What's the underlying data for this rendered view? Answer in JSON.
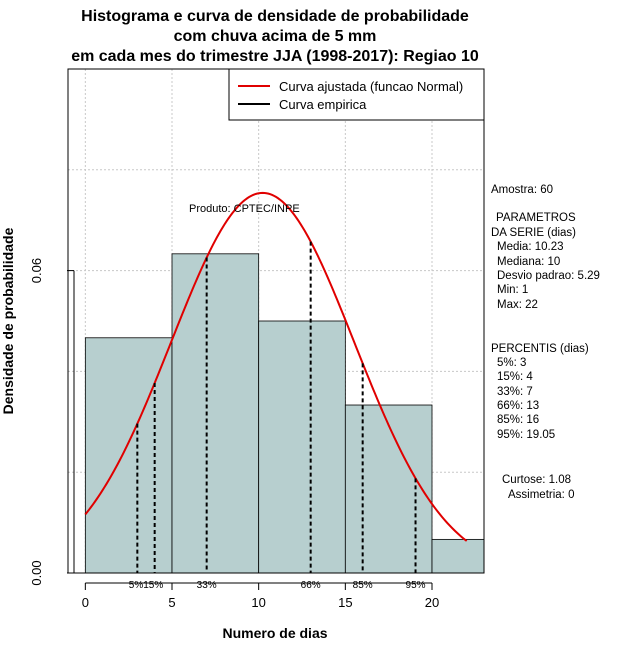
{
  "chart_data": {
    "type": "bar",
    "title": [
      "Histograma e curva de densidade de probabilidade",
      "com chuva acima de 5 mm",
      "em cada mes do trimestre JJA (1998-2017): Regiao 10"
    ],
    "xlabel": "Numero de dias",
    "ylabel": "Densidade de probabilidade",
    "xlim": [
      -1,
      23
    ],
    "ylim": [
      0,
      0.1
    ],
    "x_ticks": [
      0,
      5,
      10,
      15,
      20
    ],
    "y_ticks": [
      0.0,
      0.06
    ],
    "y_tick_labels": [
      "0.00",
      "0.06"
    ],
    "grid": true,
    "bins": [
      {
        "x0": 0,
        "x1": 5,
        "density": 0.04667
      },
      {
        "x0": 5,
        "x1": 10,
        "density": 0.06333
      },
      {
        "x0": 10,
        "x1": 15,
        "density": 0.05
      },
      {
        "x0": 15,
        "x1": 20,
        "density": 0.03333
      },
      {
        "x0": 20,
        "x1": 23,
        "density": 0.00667
      }
    ],
    "bar_color": "#b7cfcf",
    "normal_curve": {
      "mean": 10.23,
      "sd": 5.29,
      "x_from": 0,
      "x_to": 22,
      "color": "#e00000"
    },
    "percentile_lines": [
      {
        "x": 3,
        "label": "5%"
      },
      {
        "x": 4,
        "label": "15%"
      },
      {
        "x": 7,
        "label": "33%"
      },
      {
        "x": 13,
        "label": "66%"
      },
      {
        "x": 16,
        "label": "85%"
      },
      {
        "x": 19.05,
        "label": "95%"
      }
    ],
    "percentile_label_combined": "5%15%",
    "legend": {
      "position": "top-right",
      "items": [
        {
          "label": "Curva ajustada (funcao Normal)",
          "color": "#e00000"
        },
        {
          "label": "Curva empirica",
          "color": "#000000"
        }
      ]
    },
    "annotation": "Produto: CPTEC/INPE"
  },
  "stats_panel": {
    "sample": "Amostra: 60",
    "params_title_1": "PARAMETROS",
    "params_title_2": "DA SERIE (dias)",
    "params": [
      "Media: 10.23",
      "Mediana: 10",
      "Desvio padrao: 5.29",
      "Min: 1",
      "Max: 22"
    ],
    "percentis_title": "PERCENTIS (dias)",
    "percentis": [
      "5%: 3",
      "15%: 4",
      "33%: 7",
      "66%: 13",
      "85%: 16",
      "95%: 19.05"
    ],
    "curtose": "Curtose: 1.08",
    "assimetria": "Assimetria: 0"
  }
}
